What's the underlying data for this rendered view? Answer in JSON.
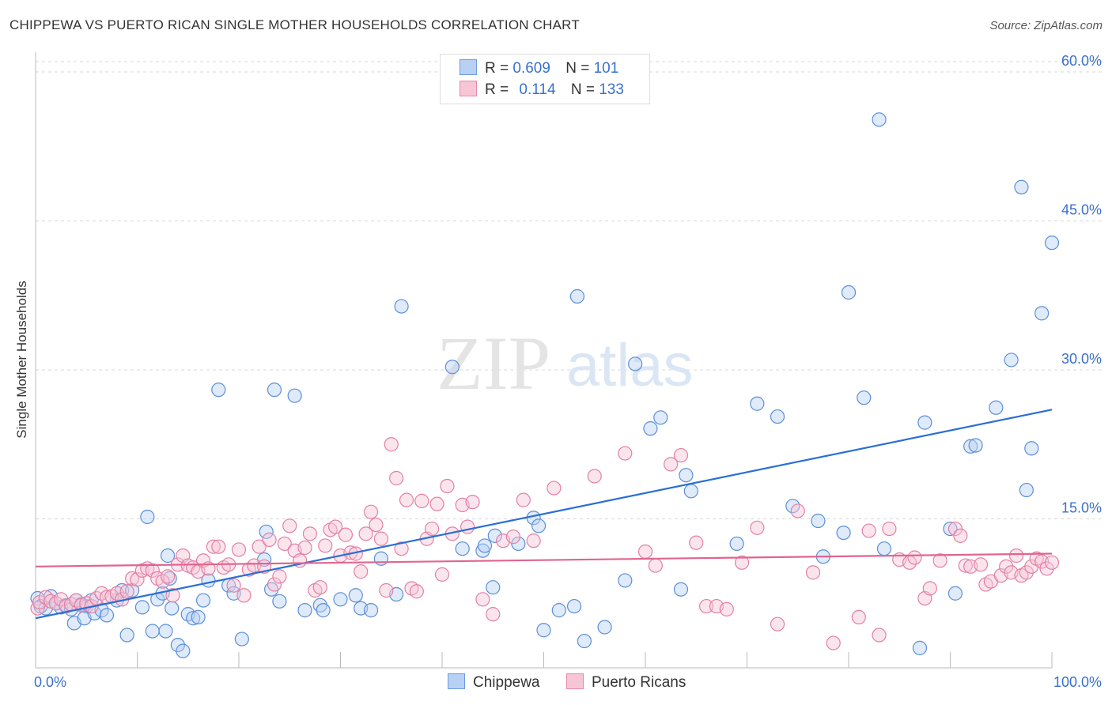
{
  "title": "CHIPPEWA VS PUERTO RICAN SINGLE MOTHER HOUSEHOLDS CORRELATION CHART",
  "source": "Source: ZipAtlas.com",
  "watermark": {
    "zip": "ZIP",
    "atlas": "atlas"
  },
  "legend": {
    "r_label": "R =",
    "n_label": "N =",
    "rows": [
      {
        "r": "0.609",
        "n": "101",
        "color": "#6a9ce0",
        "fill": "#b8d0f3"
      },
      {
        "r": "0.114",
        "n": "133",
        "color": "#e888a8",
        "fill": "#f7c6d6"
      }
    ]
  },
  "bottom_legend": [
    "Chippewa",
    "Puerto Ricans"
  ],
  "chart_data": {
    "type": "scatter",
    "title": "CHIPPEWA VS PUERTO RICAN SINGLE MOTHER HOUSEHOLDS CORRELATION CHART",
    "xlabel": "",
    "ylabel": "Single Mother Households",
    "xlim": [
      0,
      100
    ],
    "ylim": [
      0,
      60
    ],
    "x_tick_labels": [
      "0.0%",
      "100.0%"
    ],
    "y_ticks": [
      15,
      30,
      45,
      60
    ],
    "y_tick_labels": [
      "15.0%",
      "30.0%",
      "45.0%",
      "60.0%"
    ],
    "grid": true,
    "legend_position": "top-center",
    "series": [
      {
        "name": "Chippewa",
        "color": "#5b8fd9",
        "fill": "#b8d0f3",
        "line_color": "#2a6fd6",
        "trend": [
          [
            0,
            5.0
          ],
          [
            100,
            26.0
          ]
        ],
        "points": [
          [
            0.2,
            7.0
          ],
          [
            0.5,
            6.2
          ],
          [
            1.0,
            6.0
          ],
          [
            1.5,
            7.2
          ],
          [
            2,
            6.5
          ],
          [
            2.5,
            6.1
          ],
          [
            3,
            6.3
          ],
          [
            3.5,
            5.9
          ],
          [
            4,
            6.8
          ],
          [
            4.5,
            6.4
          ],
          [
            5,
            6.2
          ],
          [
            5.5,
            6.8
          ],
          [
            3.8,
            4.5
          ],
          [
            4.8,
            5.0
          ],
          [
            5.8,
            5.5
          ],
          [
            6.5,
            5.8
          ],
          [
            7,
            5.3
          ],
          [
            8,
            6.8
          ],
          [
            8.5,
            7.8
          ],
          [
            9.5,
            7.8
          ],
          [
            9,
            3.3
          ],
          [
            10.5,
            6.1
          ],
          [
            11,
            15.2
          ],
          [
            11.5,
            3.7
          ],
          [
            12,
            6.9
          ],
          [
            12.5,
            7.5
          ],
          [
            13.2,
            9.0
          ],
          [
            13,
            11.3
          ],
          [
            12.8,
            3.7
          ],
          [
            13.4,
            6.0
          ],
          [
            14,
            2.3
          ],
          [
            14.5,
            1.7
          ],
          [
            15,
            5.4
          ],
          [
            15.5,
            5.0
          ],
          [
            16,
            5.1
          ],
          [
            16.5,
            6.8
          ],
          [
            17,
            8.8
          ],
          [
            18,
            28.0
          ],
          [
            19,
            8.3
          ],
          [
            19.5,
            7.5
          ],
          [
            20.3,
            2.9
          ],
          [
            22.5,
            10.9
          ],
          [
            22.7,
            13.7
          ],
          [
            23.5,
            28.0
          ],
          [
            23.2,
            7.9
          ],
          [
            24,
            6.7
          ],
          [
            25.5,
            27.4
          ],
          [
            26.5,
            5.8
          ],
          [
            28,
            6.3
          ],
          [
            28.3,
            5.8
          ],
          [
            30,
            6.9
          ],
          [
            31.5,
            7.3
          ],
          [
            32,
            6.0
          ],
          [
            33,
            5.8
          ],
          [
            34,
            11.0
          ],
          [
            36,
            36.4
          ],
          [
            35.5,
            7.4
          ],
          [
            41,
            30.3
          ],
          [
            42,
            12.0
          ],
          [
            44,
            11.8
          ],
          [
            44.2,
            12.3
          ],
          [
            45,
            8.1
          ],
          [
            45.2,
            13.3
          ],
          [
            47.5,
            12.5
          ],
          [
            49,
            15.1
          ],
          [
            49.5,
            14.3
          ],
          [
            50,
            3.8
          ],
          [
            51.5,
            5.8
          ],
          [
            53,
            6.2
          ],
          [
            53.3,
            37.4
          ],
          [
            54,
            2.7
          ],
          [
            56,
            4.1
          ],
          [
            58,
            8.8
          ],
          [
            59,
            30.6
          ],
          [
            60.5,
            24.1
          ],
          [
            61.5,
            25.2
          ],
          [
            63.5,
            7.9
          ],
          [
            64,
            19.4
          ],
          [
            64.5,
            17.8
          ],
          [
            69,
            12.5
          ],
          [
            71,
            26.6
          ],
          [
            73,
            25.3
          ],
          [
            74.5,
            16.3
          ],
          [
            77,
            14.8
          ],
          [
            77.5,
            11.2
          ],
          [
            79.5,
            13.6
          ],
          [
            80,
            37.8
          ],
          [
            81.5,
            27.2
          ],
          [
            83,
            55.2
          ],
          [
            83.5,
            12.0
          ],
          [
            87,
            2.0
          ],
          [
            87.5,
            24.7
          ],
          [
            90,
            14.0
          ],
          [
            90.5,
            7.5
          ],
          [
            92,
            22.3
          ],
          [
            92.5,
            22.4
          ],
          [
            94.5,
            26.2
          ],
          [
            96,
            31.0
          ],
          [
            97,
            48.4
          ],
          [
            97.5,
            17.9
          ],
          [
            98,
            22.1
          ],
          [
            99,
            35.7
          ],
          [
            100,
            42.8
          ]
        ]
      },
      {
        "name": "Puerto Ricans",
        "color": "#e47fa3",
        "fill": "#f7c6d6",
        "line_color": "#e0658f",
        "trend": [
          [
            0,
            10.2
          ],
          [
            100,
            11.5
          ]
        ],
        "points": [
          [
            0.2,
            6.0
          ],
          [
            0.4,
            6.6
          ],
          [
            1,
            7.1
          ],
          [
            1.5,
            6.7
          ],
          [
            2,
            6.5
          ],
          [
            2.5,
            6.9
          ],
          [
            3,
            6.2
          ],
          [
            3.5,
            6.4
          ],
          [
            4,
            6.8
          ],
          [
            4.5,
            6.3
          ],
          [
            5,
            6.5
          ],
          [
            5.5,
            6.2
          ],
          [
            6,
            7.0
          ],
          [
            6.5,
            7.5
          ],
          [
            7,
            7.1
          ],
          [
            7.5,
            7.2
          ],
          [
            8,
            7.5
          ],
          [
            8.5,
            6.9
          ],
          [
            9,
            7.7
          ],
          [
            9.5,
            9.0
          ],
          [
            10,
            8.9
          ],
          [
            10.5,
            9.8
          ],
          [
            11,
            10.0
          ],
          [
            11.5,
            9.8
          ],
          [
            12,
            9.0
          ],
          [
            12.5,
            8.7
          ],
          [
            13,
            9.2
          ],
          [
            13.5,
            7.3
          ],
          [
            14,
            10.4
          ],
          [
            14.5,
            11.3
          ],
          [
            15,
            10.3
          ],
          [
            15.5,
            10.1
          ],
          [
            16,
            9.7
          ],
          [
            16.5,
            10.8
          ],
          [
            17,
            10.0
          ],
          [
            17.5,
            12.2
          ],
          [
            18,
            12.2
          ],
          [
            18.5,
            10.1
          ],
          [
            19,
            10.4
          ],
          [
            19.5,
            8.3
          ],
          [
            20,
            11.9
          ],
          [
            20.5,
            7.3
          ],
          [
            21,
            9.9
          ],
          [
            21.5,
            10.3
          ],
          [
            22,
            12.2
          ],
          [
            22.5,
            10.2
          ],
          [
            23,
            12.9
          ],
          [
            23.5,
            8.4
          ],
          [
            24,
            9.2
          ],
          [
            24.5,
            12.5
          ],
          [
            25,
            14.3
          ],
          [
            25.5,
            11.8
          ],
          [
            26,
            10.8
          ],
          [
            26.5,
            12.1
          ],
          [
            27,
            13.5
          ],
          [
            27.5,
            7.8
          ],
          [
            28,
            8.1
          ],
          [
            28.5,
            12.3
          ],
          [
            29,
            13.9
          ],
          [
            29.5,
            14.2
          ],
          [
            30,
            11.3
          ],
          [
            30.5,
            13.4
          ],
          [
            31,
            11.6
          ],
          [
            31.5,
            11.5
          ],
          [
            32,
            9.7
          ],
          [
            32.5,
            13.5
          ],
          [
            33,
            15.7
          ],
          [
            33.5,
            14.4
          ],
          [
            34,
            13.0
          ],
          [
            34.5,
            7.8
          ],
          [
            35,
            22.5
          ],
          [
            35.5,
            19.1
          ],
          [
            36,
            12.0
          ],
          [
            36.5,
            16.9
          ],
          [
            37,
            8.0
          ],
          [
            37.5,
            7.7
          ],
          [
            38,
            16.8
          ],
          [
            38.5,
            13.0
          ],
          [
            39,
            14.0
          ],
          [
            39.5,
            16.5
          ],
          [
            40,
            9.4
          ],
          [
            40.5,
            18.3
          ],
          [
            41,
            13.5
          ],
          [
            42,
            16.4
          ],
          [
            42.5,
            14.2
          ],
          [
            43,
            16.7
          ],
          [
            44,
            6.9
          ],
          [
            45,
            5.4
          ],
          [
            46,
            12.8
          ],
          [
            47,
            13.2
          ],
          [
            48,
            16.9
          ],
          [
            49,
            12.8
          ],
          [
            51,
            18.1
          ],
          [
            55,
            19.3
          ],
          [
            58,
            21.6
          ],
          [
            60,
            11.7
          ],
          [
            61,
            10.3
          ],
          [
            62.5,
            20.5
          ],
          [
            63.5,
            21.4
          ],
          [
            65,
            12.6
          ],
          [
            66,
            6.2
          ],
          [
            67,
            6.2
          ],
          [
            68,
            5.9
          ],
          [
            69.5,
            10.6
          ],
          [
            71,
            14.1
          ],
          [
            73,
            4.4
          ],
          [
            75,
            15.8
          ],
          [
            76.5,
            9.6
          ],
          [
            78.5,
            2.5
          ],
          [
            81,
            5.1
          ],
          [
            82,
            13.8
          ],
          [
            83,
            3.3
          ],
          [
            84,
            14.0
          ],
          [
            85,
            10.9
          ],
          [
            86,
            10.6
          ],
          [
            86.5,
            11.1
          ],
          [
            87.5,
            7.0
          ],
          [
            88,
            8.0
          ],
          [
            89,
            10.8
          ],
          [
            90.5,
            14.0
          ],
          [
            91,
            13.3
          ],
          [
            91.5,
            10.3
          ],
          [
            92,
            10.2
          ],
          [
            93,
            10.4
          ],
          [
            93.5,
            8.4
          ],
          [
            94,
            8.7
          ],
          [
            95,
            9.3
          ],
          [
            95.5,
            10.2
          ],
          [
            96,
            9.6
          ],
          [
            96.5,
            11.3
          ],
          [
            97,
            9.3
          ],
          [
            97.5,
            9.6
          ],
          [
            98,
            10.2
          ],
          [
            98.5,
            11.0
          ],
          [
            99,
            10.7
          ],
          [
            99.5,
            10.0
          ],
          [
            100,
            10.6
          ]
        ]
      }
    ]
  }
}
